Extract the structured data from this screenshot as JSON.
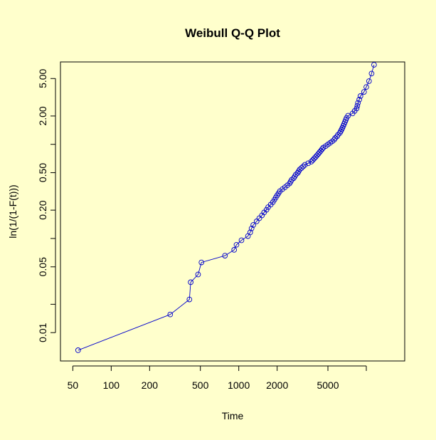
{
  "colors": {
    "background": "#ffffcc",
    "series": "#0000cc",
    "axis": "#000000"
  },
  "chart_data": {
    "type": "line",
    "title": "Weibull Q-Q Plot",
    "xlabel": "Time",
    "ylabel": "ln(1/(1-F(t)))",
    "x_scale": "log",
    "y_scale": "log",
    "xlim": [
      40,
      20000
    ],
    "ylim": [
      0.005,
      7.5
    ],
    "x_ticks": [
      50,
      100,
      200,
      500,
      1000,
      2000,
      5000,
      10000
    ],
    "x_tick_labels": [
      "50",
      "100",
      "200",
      "500",
      "1000",
      "2000",
      "5000",
      ""
    ],
    "y_ticks": [
      0.01,
      0.02,
      0.05,
      0.1,
      0.2,
      0.5,
      1,
      2,
      5
    ],
    "y_tick_labels": [
      "0.01",
      "",
      "0.05",
      "",
      "0.20",
      "0.50",
      "",
      "2.00",
      "5.00"
    ],
    "grid": false,
    "series": [
      {
        "marker": "circle",
        "x": [
          55,
          290,
          410,
          420,
          480,
          510,
          780,
          920,
          960,
          1050,
          1180,
          1230,
          1260,
          1300,
          1380,
          1450,
          1520,
          1580,
          1650,
          1700,
          1780,
          1850,
          1900,
          1950,
          2000,
          2050,
          2100,
          2200,
          2300,
          2400,
          2500,
          2550,
          2600,
          2700,
          2750,
          2800,
          2900,
          2950,
          3000,
          3100,
          3200,
          3300,
          3500,
          3700,
          3800,
          3900,
          4000,
          4100,
          4200,
          4300,
          4400,
          4500,
          4600,
          4800,
          5000,
          5200,
          5400,
          5600,
          5700,
          5900,
          6000,
          6200,
          6300,
          6400,
          6500,
          6600,
          6700,
          6800,
          6900,
          7000,
          7200,
          7800,
          8100,
          8400,
          8500,
          8600,
          8800,
          9000,
          9600,
          10000,
          10500,
          11000,
          11500
        ],
        "y": [
          0.0065,
          0.0156,
          0.0225,
          0.0343,
          0.0415,
          0.0557,
          0.0657,
          0.0757,
          0.0857,
          0.0957,
          0.106,
          0.116,
          0.128,
          0.139,
          0.152,
          0.164,
          0.176,
          0.189,
          0.202,
          0.215,
          0.229,
          0.243,
          0.257,
          0.272,
          0.287,
          0.302,
          0.318,
          0.334,
          0.35,
          0.367,
          0.384,
          0.402,
          0.42,
          0.438,
          0.457,
          0.477,
          0.497,
          0.517,
          0.539,
          0.56,
          0.583,
          0.606,
          0.63,
          0.655,
          0.68,
          0.707,
          0.734,
          0.763,
          0.792,
          0.823,
          0.855,
          0.888,
          0.922,
          0.958,
          0.996,
          1.035,
          1.077,
          1.12,
          1.166,
          1.214,
          1.265,
          1.319,
          1.376,
          1.437,
          1.502,
          1.572,
          1.647,
          1.727,
          1.815,
          1.91,
          2.014,
          2.13,
          2.258,
          2.402,
          2.566,
          2.757,
          2.983,
          3.257,
          3.604,
          4.06,
          4.688,
          5.644,
          7.0
        ]
      }
    ]
  }
}
